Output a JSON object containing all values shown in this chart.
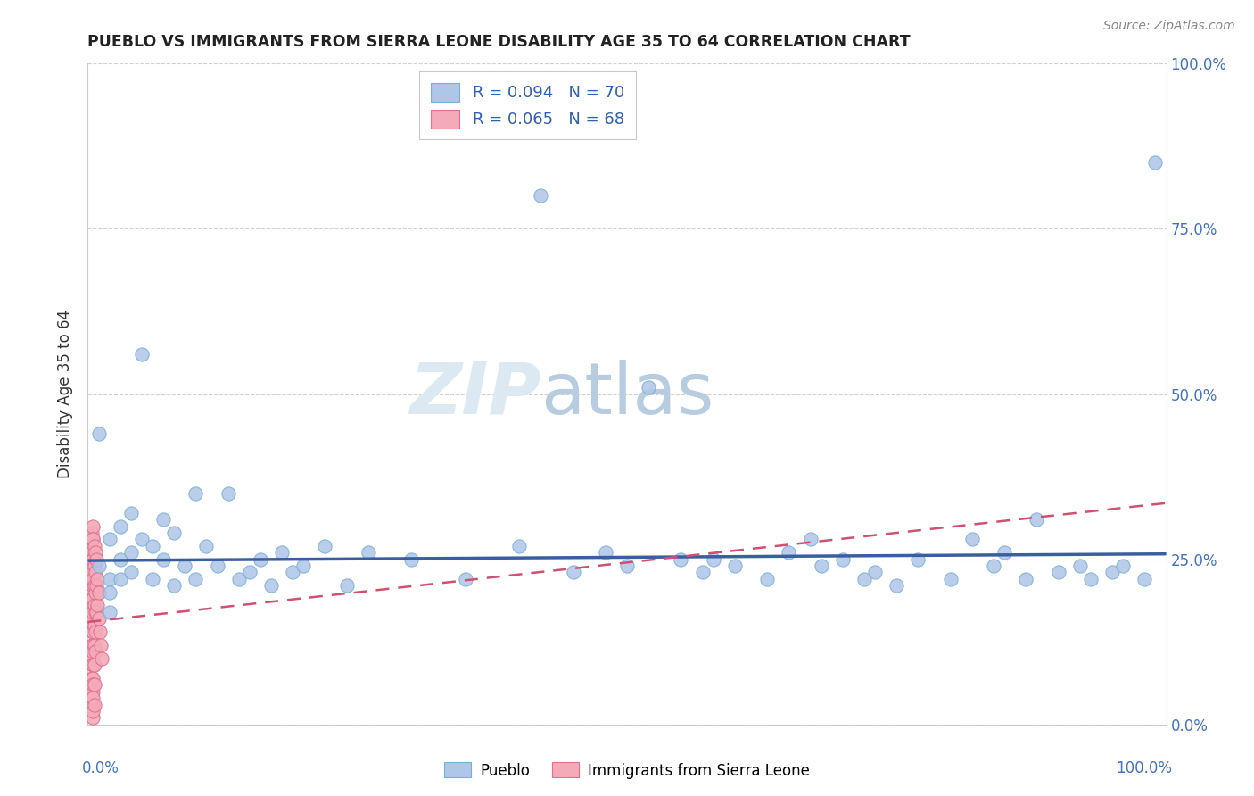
{
  "title": "PUEBLO VS IMMIGRANTS FROM SIERRA LEONE DISABILITY AGE 35 TO 64 CORRELATION CHART",
  "source": "Source: ZipAtlas.com",
  "ylabel": "Disability Age 35 to 64",
  "legend_label1": "Pueblo",
  "legend_label2": "Immigrants from Sierra Leone",
  "R1": 0.094,
  "N1": 70,
  "R2": 0.065,
  "N2": 68,
  "color_pueblo": "#aec6e8",
  "color_pueblo_edge": "#7bafd4",
  "color_sierra": "#f4aab8",
  "color_sierra_edge": "#e07090",
  "color_pueblo_line": "#3a5fa0",
  "color_sierra_line": "#d05070",
  "watermark_color": "#e0e8f0",
  "pueblo_x": [
    0.01,
    0.01,
    0.02,
    0.02,
    0.02,
    0.02,
    0.03,
    0.03,
    0.03,
    0.04,
    0.04,
    0.04,
    0.05,
    0.05,
    0.06,
    0.06,
    0.07,
    0.07,
    0.08,
    0.08,
    0.09,
    0.1,
    0.1,
    0.11,
    0.12,
    0.13,
    0.14,
    0.15,
    0.16,
    0.17,
    0.18,
    0.19,
    0.2,
    0.22,
    0.24,
    0.26,
    0.3,
    0.35,
    0.4,
    0.42,
    0.45,
    0.48,
    0.5,
    0.52,
    0.55,
    0.57,
    0.58,
    0.6,
    0.63,
    0.65,
    0.67,
    0.68,
    0.7,
    0.72,
    0.73,
    0.75,
    0.77,
    0.8,
    0.82,
    0.84,
    0.85,
    0.87,
    0.88,
    0.9,
    0.92,
    0.93,
    0.95,
    0.96,
    0.98,
    0.99
  ],
  "pueblo_y": [
    0.44,
    0.24,
    0.28,
    0.22,
    0.2,
    0.17,
    0.3,
    0.25,
    0.22,
    0.32,
    0.26,
    0.23,
    0.56,
    0.28,
    0.27,
    0.22,
    0.31,
    0.25,
    0.29,
    0.21,
    0.24,
    0.35,
    0.22,
    0.27,
    0.24,
    0.35,
    0.22,
    0.23,
    0.25,
    0.21,
    0.26,
    0.23,
    0.24,
    0.27,
    0.21,
    0.26,
    0.25,
    0.22,
    0.27,
    0.8,
    0.23,
    0.26,
    0.24,
    0.51,
    0.25,
    0.23,
    0.25,
    0.24,
    0.22,
    0.26,
    0.28,
    0.24,
    0.25,
    0.22,
    0.23,
    0.21,
    0.25,
    0.22,
    0.28,
    0.24,
    0.26,
    0.22,
    0.31,
    0.23,
    0.24,
    0.22,
    0.23,
    0.24,
    0.22,
    0.85
  ],
  "sierra_x": [
    0.002,
    0.002,
    0.003,
    0.003,
    0.003,
    0.003,
    0.003,
    0.003,
    0.004,
    0.004,
    0.004,
    0.004,
    0.004,
    0.004,
    0.004,
    0.004,
    0.004,
    0.004,
    0.005,
    0.005,
    0.005,
    0.005,
    0.005,
    0.005,
    0.005,
    0.005,
    0.005,
    0.005,
    0.005,
    0.005,
    0.005,
    0.005,
    0.005,
    0.005,
    0.005,
    0.005,
    0.005,
    0.005,
    0.005,
    0.005,
    0.005,
    0.005,
    0.005,
    0.006,
    0.006,
    0.006,
    0.006,
    0.006,
    0.006,
    0.006,
    0.006,
    0.006,
    0.007,
    0.007,
    0.007,
    0.007,
    0.007,
    0.007,
    0.008,
    0.008,
    0.008,
    0.009,
    0.009,
    0.01,
    0.01,
    0.011,
    0.012,
    0.013
  ],
  "sierra_y": [
    0.27,
    0.22,
    0.28,
    0.25,
    0.23,
    0.2,
    0.17,
    0.15,
    0.29,
    0.26,
    0.24,
    0.22,
    0.19,
    0.17,
    0.15,
    0.12,
    0.1,
    0.07,
    0.3,
    0.28,
    0.25,
    0.23,
    0.21,
    0.18,
    0.16,
    0.14,
    0.12,
    0.09,
    0.07,
    0.05,
    0.03,
    0.01,
    0.28,
    0.25,
    0.22,
    0.19,
    0.17,
    0.14,
    0.11,
    0.09,
    0.06,
    0.04,
    0.02,
    0.27,
    0.24,
    0.21,
    0.18,
    0.15,
    0.12,
    0.09,
    0.06,
    0.03,
    0.26,
    0.23,
    0.2,
    0.17,
    0.14,
    0.11,
    0.25,
    0.21,
    0.17,
    0.22,
    0.18,
    0.2,
    0.16,
    0.14,
    0.12,
    0.1
  ],
  "pueblo_trend_x0": 0.0,
  "pueblo_trend_x1": 1.0,
  "pueblo_trend_y0": 0.248,
  "pueblo_trend_y1": 0.258,
  "sierra_trend_x0": 0.0,
  "sierra_trend_x1": 1.0,
  "sierra_trend_y0": 0.155,
  "sierra_trend_y1": 0.335,
  "xlim": [
    0.0,
    1.0
  ],
  "ylim": [
    0.0,
    1.0
  ],
  "yticks": [
    0.0,
    0.25,
    0.5,
    0.75,
    1.0
  ],
  "ytick_labels": [
    "0.0%",
    "25.0%",
    "50.0%",
    "75.0%",
    "100.0%"
  ],
  "grid_color": "#cccccc",
  "spine_color": "#cccccc",
  "title_color": "#222222",
  "source_color": "#888888",
  "ylabel_color": "#333333"
}
